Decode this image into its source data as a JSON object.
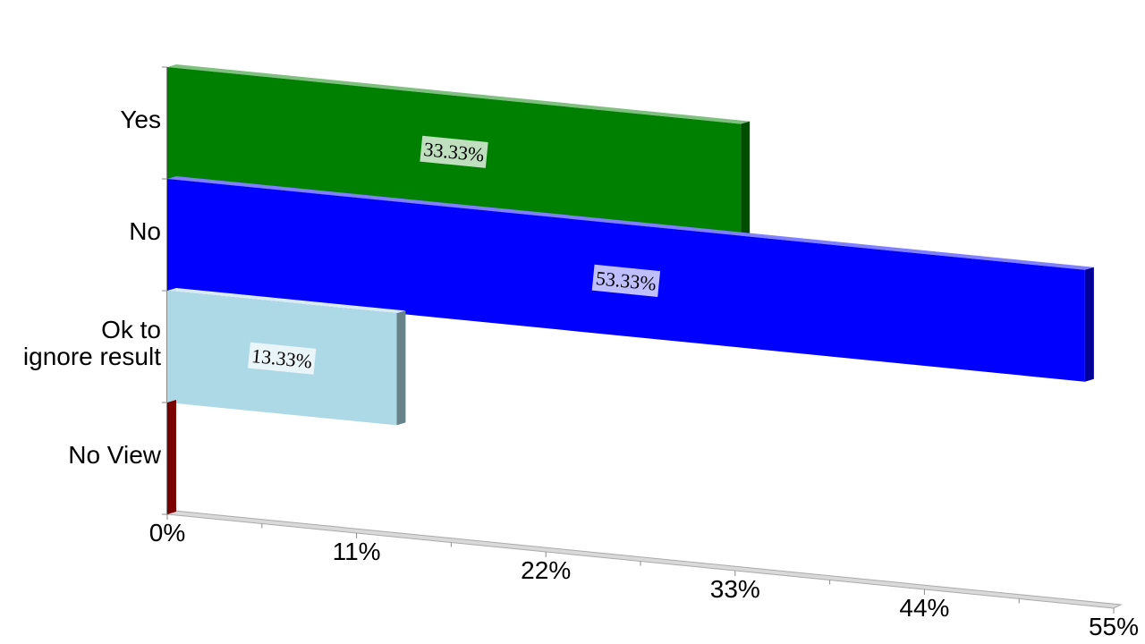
{
  "chart_data": {
    "type": "bar3d",
    "categories": [
      "Yes",
      "No",
      "Ok to\nignore result",
      "No View"
    ],
    "values": [
      33.33,
      53.33,
      13.33,
      0
    ],
    "value_labels": [
      "33.33%",
      "53.33%",
      "13.33%",
      null
    ],
    "colors": [
      "#008000",
      "#0000ff",
      "#add8e6",
      "#cc0000"
    ],
    "xlim": [
      0,
      55
    ],
    "xticks": [
      {
        "value": 0,
        "label": "0%"
      },
      {
        "value": 11,
        "label": "11%"
      },
      {
        "value": 22,
        "label": "22%"
      },
      {
        "value": 33,
        "label": "33%"
      },
      {
        "value": 44,
        "label": "44%"
      },
      {
        "value": 55,
        "label": "55%"
      }
    ]
  }
}
